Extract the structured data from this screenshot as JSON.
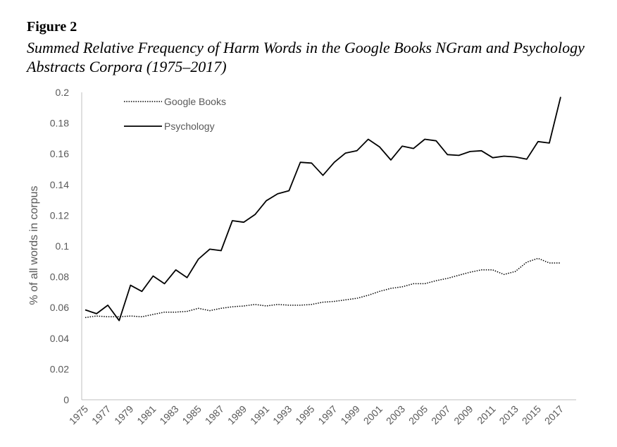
{
  "figure": {
    "label": "Figure 2",
    "title": "Summed Relative Frequency of Harm Words in the Google Books NGram and Psychology Abstracts Corpora (1975–2017)"
  },
  "chart_data": {
    "type": "line",
    "title": "",
    "xlabel": "",
    "ylabel": "% of all words in corpus",
    "ylim": [
      0,
      0.2
    ],
    "yticks": [
      0,
      0.02,
      0.04,
      0.06,
      0.08,
      0.1,
      0.12,
      0.14,
      0.16,
      0.18,
      0.2
    ],
    "ytick_labels": [
      "0",
      "0.02",
      "0.04",
      "0.06",
      "0.08",
      "0.1",
      "0.12",
      "0.14",
      "0.16",
      "0.18",
      "0.2"
    ],
    "x": [
      1975,
      1976,
      1977,
      1978,
      1979,
      1980,
      1981,
      1982,
      1983,
      1984,
      1985,
      1986,
      1987,
      1988,
      1989,
      1990,
      1991,
      1992,
      1993,
      1994,
      1995,
      1996,
      1997,
      1998,
      1999,
      2000,
      2001,
      2002,
      2003,
      2004,
      2005,
      2006,
      2007,
      2008,
      2009,
      2010,
      2011,
      2012,
      2013,
      2014,
      2015,
      2016,
      2017
    ],
    "xtick_labels": [
      "1975",
      "1977",
      "1979",
      "1981",
      "1983",
      "1985",
      "1987",
      "1989",
      "1991",
      "1993",
      "1995",
      "1997",
      "1999",
      "2001",
      "2003",
      "2005",
      "2007",
      "2009",
      "2011",
      "2013",
      "2015",
      "2017"
    ],
    "grid": false,
    "legend_position": "top-left",
    "series": [
      {
        "name": "Google Books",
        "style": "dotted",
        "color": "#000000",
        "values": [
          0.0535,
          0.0545,
          0.054,
          0.054,
          0.0545,
          0.054,
          0.0555,
          0.057,
          0.057,
          0.0575,
          0.0595,
          0.058,
          0.0595,
          0.0605,
          0.061,
          0.062,
          0.061,
          0.062,
          0.0615,
          0.0615,
          0.062,
          0.0635,
          0.064,
          0.065,
          0.066,
          0.068,
          0.0705,
          0.0725,
          0.0735,
          0.0755,
          0.0755,
          0.0775,
          0.079,
          0.081,
          0.083,
          0.0845,
          0.0845,
          0.0815,
          0.0835,
          0.0895,
          0.092,
          0.089,
          0.089
        ]
      },
      {
        "name": "Psychology",
        "style": "solid",
        "color": "#000000",
        "values": [
          0.0585,
          0.056,
          0.0615,
          0.0515,
          0.0745,
          0.0705,
          0.0805,
          0.0755,
          0.0845,
          0.0795,
          0.0915,
          0.098,
          0.097,
          0.1165,
          0.1155,
          0.1205,
          0.1295,
          0.134,
          0.136,
          0.1545,
          0.154,
          0.146,
          0.1545,
          0.1605,
          0.162,
          0.1695,
          0.1645,
          0.156,
          0.165,
          0.1635,
          0.1695,
          0.1685,
          0.1595,
          0.159,
          0.1615,
          0.162,
          0.1575,
          0.1585,
          0.158,
          0.1565,
          0.168,
          0.167,
          0.197
        ]
      }
    ]
  }
}
